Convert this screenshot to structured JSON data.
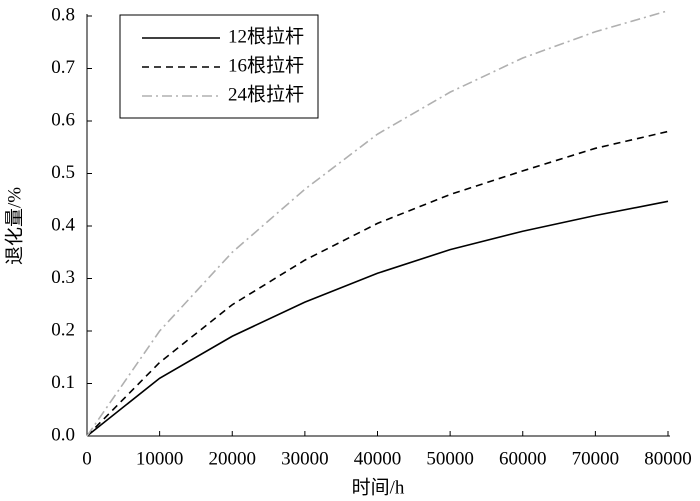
{
  "chart_data": {
    "type": "line",
    "x_label": "时间/h",
    "y_label": "退化量/%",
    "x": [
      0,
      10000,
      20000,
      30000,
      40000,
      50000,
      60000,
      70000,
      80000
    ],
    "series": [
      {
        "name": "12根拉杆",
        "color": "#000000",
        "dash": "solid",
        "values": [
          0,
          0.11,
          0.19,
          0.255,
          0.31,
          0.355,
          0.39,
          0.42,
          0.447
        ]
      },
      {
        "name": "16根拉杆",
        "color": "#000000",
        "dash": "dashed",
        "values": [
          0,
          0.14,
          0.25,
          0.335,
          0.405,
          0.46,
          0.505,
          0.548,
          0.58
        ]
      },
      {
        "name": "24根拉杆",
        "color": "#b0b0b0",
        "dash": "dashdot",
        "values": [
          0,
          0.2,
          0.35,
          0.47,
          0.575,
          0.655,
          0.72,
          0.77,
          0.81
        ]
      }
    ],
    "xlim": [
      0,
      80000
    ],
    "xticks": [
      0,
      10000,
      20000,
      30000,
      40000,
      50000,
      60000,
      70000,
      80000
    ],
    "ylim": [
      0,
      0.8
    ],
    "yticks": [
      {
        "value": 0,
        "label": "0.0"
      },
      0.1,
      0.2,
      0.3,
      0.4,
      0.5,
      0.6,
      0.7,
      0.8
    ],
    "legend": "upper-left",
    "grid": false
  }
}
